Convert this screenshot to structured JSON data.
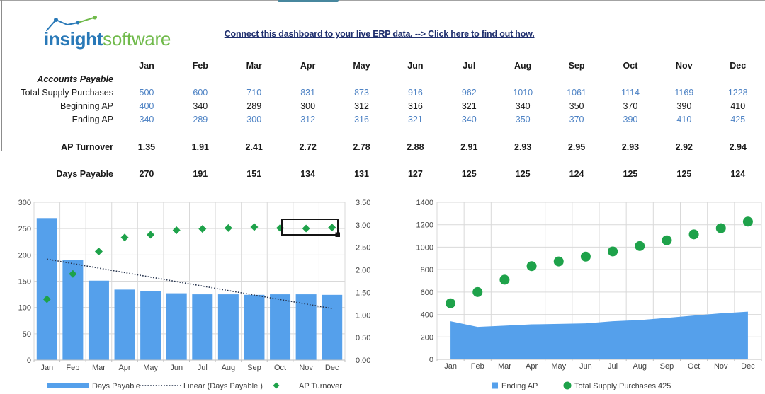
{
  "colors": {
    "bar_blue": "#55a0eb",
    "green": "#1ea24a",
    "grid": "#d9d9d9",
    "axis_line": "#bfbfbf",
    "trend_navy": "#26334d",
    "table_blue": "#4d82c4",
    "link_navy": "#1f2f6e",
    "logo_blue": "#2979b8",
    "logo_green": "#70ba4b",
    "tab_teal": "#47879e"
  },
  "logo": {
    "part1": "insight",
    "part2": "software"
  },
  "header": {
    "link_text": "Connect this dashboard to your live ERP data. --> Click here to find out how."
  },
  "table": {
    "months": [
      "Jan",
      "Feb",
      "Mar",
      "Apr",
      "May",
      "Jun",
      "Jul",
      "Aug",
      "Sep",
      "Oct",
      "Nov",
      "Dec"
    ],
    "section_label": "Accounts Payable",
    "rows": [
      {
        "label": "Total Supply Purchases",
        "bold": false,
        "gap_before": false,
        "values": [
          "500",
          "600",
          "710",
          "831",
          "873",
          "916",
          "962",
          "1010",
          "1061",
          "1114",
          "1169",
          "1228"
        ],
        "blue": [
          0,
          1,
          2,
          3,
          4,
          5,
          6,
          7,
          8,
          9,
          10,
          11
        ]
      },
      {
        "label": "Beginning AP",
        "bold": false,
        "gap_before": false,
        "values": [
          "400",
          "340",
          "289",
          "300",
          "312",
          "316",
          "321",
          "340",
          "350",
          "370",
          "390",
          "410"
        ],
        "blue": [
          0
        ]
      },
      {
        "label": "Ending AP",
        "bold": false,
        "gap_before": false,
        "values": [
          "340",
          "289",
          "300",
          "312",
          "316",
          "321",
          "340",
          "350",
          "370",
          "390",
          "410",
          "425"
        ],
        "blue": [
          0,
          1,
          2,
          3,
          4,
          5,
          6,
          7,
          8,
          9,
          10,
          11
        ]
      },
      {
        "label": "AP Turnover",
        "bold": true,
        "gap_before": true,
        "values": [
          "1.35",
          "1.91",
          "2.41",
          "2.72",
          "2.78",
          "2.88",
          "2.91",
          "2.93",
          "2.95",
          "2.93",
          "2.92",
          "2.94"
        ],
        "blue": []
      },
      {
        "label": "Days Payable",
        "bold": true,
        "gap_before": true,
        "values": [
          "270",
          "191",
          "151",
          "134",
          "131",
          "127",
          "125",
          "125",
          "124",
          "125",
          "125",
          "124"
        ],
        "blue": []
      }
    ]
  },
  "chart_data": [
    {
      "type": "bar",
      "title": "",
      "categories": [
        "Jan",
        "Feb",
        "Mar",
        "Apr",
        "May",
        "Jun",
        "Jul",
        "Aug",
        "Sep",
        "Oct",
        "Nov",
        "Dec"
      ],
      "series": [
        {
          "name": "Days Payable",
          "type": "bar",
          "axis": "left",
          "color": "#55a0eb",
          "values": [
            270,
            191,
            151,
            134,
            131,
            127,
            125,
            125,
            124,
            125,
            125,
            124
          ]
        },
        {
          "name": "Linear (Days Payable )",
          "type": "trendline",
          "axis": "left",
          "color": "#26334d",
          "start": 192,
          "end": 98
        },
        {
          "name": "AP Turnover",
          "type": "scatter",
          "marker": "diamond",
          "axis": "right",
          "color": "#1ea24a",
          "values": [
            1.35,
            1.91,
            2.41,
            2.72,
            2.78,
            2.88,
            2.91,
            2.93,
            2.95,
            2.93,
            2.92,
            2.94
          ]
        }
      ],
      "left_axis": {
        "min": 0,
        "max": 300,
        "step": 50,
        "decimals": 0
      },
      "right_axis": {
        "min": 0,
        "max": 3.5,
        "step": 0.5,
        "decimals": 2
      },
      "grid": true,
      "legend_position": "bottom",
      "annotation_box": {
        "over_categories": [
          "Oct",
          "Nov",
          "Dec"
        ]
      }
    },
    {
      "type": "area",
      "title": "",
      "categories": [
        "Jan",
        "Feb",
        "Mar",
        "Apr",
        "May",
        "Jun",
        "Jul",
        "Aug",
        "Sep",
        "Oct",
        "Nov",
        "Dec"
      ],
      "series": [
        {
          "name": "Ending AP",
          "type": "area",
          "color": "#55a0eb",
          "values": [
            340,
            289,
            300,
            312,
            316,
            321,
            340,
            350,
            370,
            390,
            410,
            425
          ]
        },
        {
          "name": "Total Supply Purchases",
          "type": "scatter",
          "marker": "circle",
          "color": "#1ea24a",
          "legend_extra": "425",
          "values": [
            500,
            600,
            710,
            831,
            873,
            916,
            962,
            1010,
            1061,
            1114,
            1169,
            1228
          ]
        }
      ],
      "left_axis": {
        "min": 0,
        "max": 1400,
        "step": 200,
        "decimals": 0
      },
      "grid": true,
      "legend_position": "bottom"
    }
  ]
}
